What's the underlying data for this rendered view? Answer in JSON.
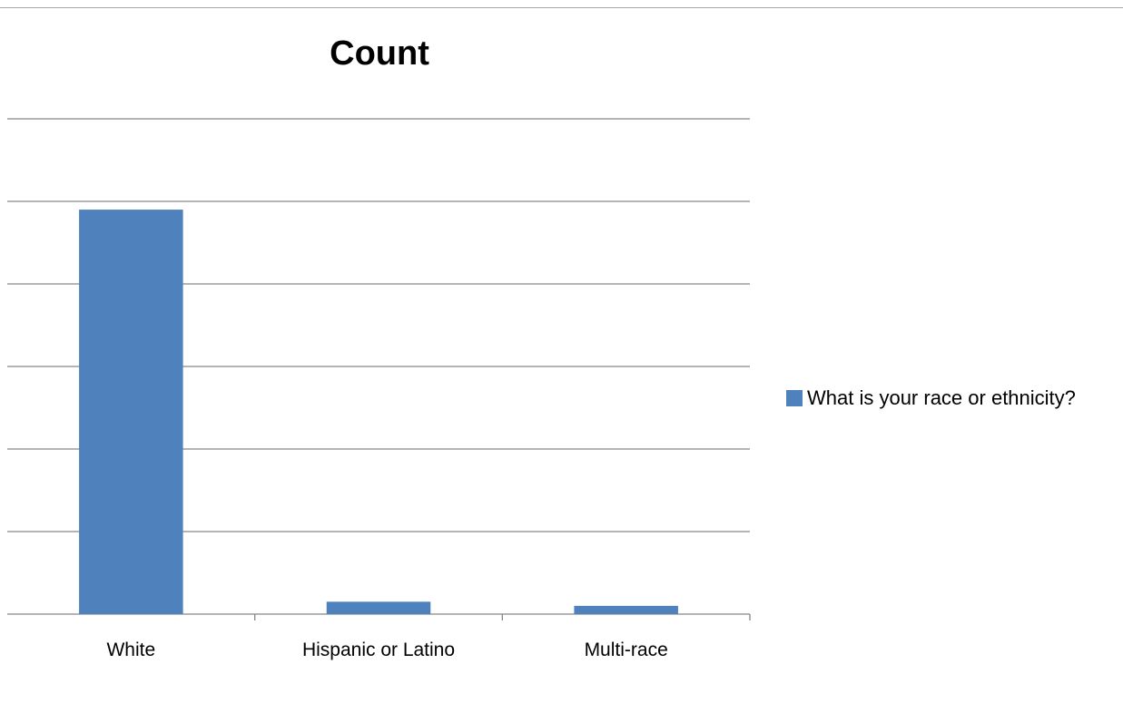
{
  "chart_data": {
    "type": "bar",
    "title": "Count",
    "xlabel": "",
    "ylabel": "",
    "categories": [
      "White",
      "Hispanic or Latino",
      "Multi-race"
    ],
    "series": [
      {
        "name": "What is your race or ethnicity?",
        "values": [
          49,
          1.5,
          1
        ]
      }
    ],
    "ylim": [
      0,
      60
    ],
    "y_gridlines": [
      0,
      10,
      20,
      30,
      40,
      50,
      60
    ],
    "y_tick_labels_shown": false,
    "grid": true,
    "legend": "right",
    "colors": {
      "bar": "#4f81bd",
      "gridline": "#868686",
      "axis": "#868686",
      "frame": "#a6a6a6"
    }
  }
}
